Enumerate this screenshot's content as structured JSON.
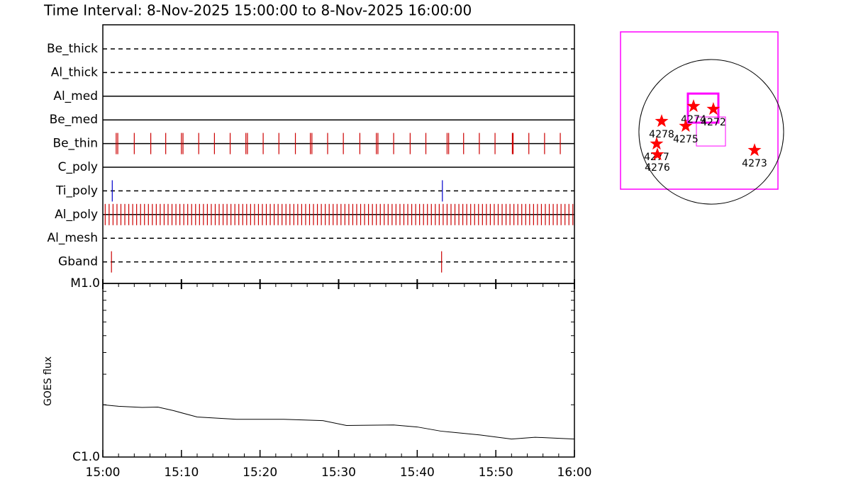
{
  "chart_data": [
    {
      "type": "event",
      "title": "Time Interval:  8-Nov-2025 15:00:00 to  8-Nov-2025 16:00:00",
      "xlim": [
        0,
        60
      ],
      "categories": [
        "Be_thick",
        "Al_thick",
        "Al_med",
        "Be_med",
        "Be_thin",
        "C_poly",
        "Ti_poly",
        "Al_poly",
        "Al_mesh",
        "Gband"
      ],
      "line_styles": [
        "dashed",
        "dashed",
        "solid",
        "solid",
        "solid",
        "solid",
        "dashed",
        "solid",
        "dashed",
        "dashed"
      ],
      "event_colors": [
        "#cc0000",
        "#cc0000",
        "#cc0000",
        "#cc0000",
        "#cc0000",
        "#cc0000",
        "#0000cc",
        "#cc0000",
        "#cc0000",
        "#cc0000"
      ],
      "events": [
        [],
        [],
        [],
        [],
        [
          1.7,
          1.9,
          4.0,
          6.1,
          8.0,
          10.0,
          10.2,
          12.2,
          14.2,
          16.2,
          18.2,
          18.4,
          20.4,
          22.4,
          24.5,
          26.4,
          26.6,
          28.6,
          30.6,
          32.7,
          34.8,
          35.0,
          37.0,
          39.1,
          41.1,
          43.8,
          44.0,
          45.9,
          47.9,
          49.9,
          52.1,
          52.2,
          54.2,
          56.2,
          58.2
        ],
        [],
        [
          1.2,
          43.2
        ],
        [
          0.3,
          0.8,
          1.3,
          1.8,
          2.3,
          2.8,
          3.3,
          3.8,
          4.3,
          4.8,
          5.3,
          5.8,
          6.3,
          6.8,
          7.3,
          7.8,
          8.3,
          8.8,
          9.3,
          9.8,
          10.3,
          10.8,
          11.3,
          11.8,
          12.3,
          12.8,
          13.3,
          13.8,
          14.3,
          14.8,
          15.3,
          15.8,
          16.3,
          16.8,
          17.3,
          17.8,
          18.3,
          18.8,
          19.3,
          19.8,
          20.3,
          20.8,
          21.3,
          21.8,
          22.3,
          22.8,
          23.3,
          23.8,
          24.3,
          24.8,
          25.3,
          25.8,
          26.3,
          26.8,
          27.3,
          27.8,
          28.3,
          28.8,
          29.3,
          29.8,
          30.3,
          30.8,
          31.3,
          31.8,
          32.3,
          32.8,
          33.3,
          33.8,
          34.3,
          34.8,
          35.3,
          35.8,
          36.3,
          36.8,
          37.3,
          37.8,
          38.3,
          38.8,
          39.3,
          39.8,
          40.3,
          40.8,
          41.3,
          41.8,
          42.3,
          42.8,
          43.3,
          43.8,
          44.3,
          44.8,
          45.3,
          45.8,
          46.3,
          46.8,
          47.3,
          47.8,
          48.3,
          48.8,
          49.3,
          49.8,
          50.3,
          50.8,
          51.3,
          51.8,
          52.3,
          52.8,
          53.3,
          53.8,
          54.3,
          54.8,
          55.3,
          55.8,
          56.3,
          56.8,
          57.3,
          57.8,
          58.3,
          58.8,
          59.3,
          59.8
        ],
        [],
        [
          1.1,
          43.1
        ]
      ]
    },
    {
      "type": "line",
      "ylabel": "GOES flux",
      "log_y": true,
      "color": "#000000",
      "xlim": [
        0,
        60
      ],
      "xticks": [
        {
          "value": 0,
          "label": "15:00"
        },
        {
          "value": 10,
          "label": "15:10"
        },
        {
          "value": 20,
          "label": "15:20"
        },
        {
          "value": 30,
          "label": "15:30"
        },
        {
          "value": 40,
          "label": "15:40"
        },
        {
          "value": 50,
          "label": "15:50"
        },
        {
          "value": 60,
          "label": "16:00"
        }
      ],
      "xminor_ticks": [
        2,
        4,
        6,
        8,
        12,
        14,
        16,
        18,
        22,
        24,
        26,
        28,
        32,
        34,
        36,
        38,
        42,
        44,
        46,
        48,
        52,
        54,
        56,
        58
      ],
      "ylim": [
        1e-06,
        1e-05
      ],
      "yticks": [
        {
          "value": 1e-06,
          "label": "C1.0"
        },
        {
          "value": 1e-05,
          "label": "M1.0"
        }
      ],
      "yminor_ticks": [
        2e-06,
        3e-06,
        4e-06,
        5e-06,
        6e-06,
        7e-06,
        8e-06,
        9e-06
      ],
      "x": [
        0,
        2,
        5,
        7,
        9,
        12,
        17,
        23,
        28,
        31,
        37,
        40,
        43,
        48,
        52,
        55,
        60
      ],
      "values": [
        2e-06,
        1.96e-06,
        1.93e-06,
        1.94e-06,
        1.85e-06,
        1.7e-06,
        1.65e-06,
        1.65e-06,
        1.62e-06,
        1.52e-06,
        1.53e-06,
        1.49e-06,
        1.41e-06,
        1.34e-06,
        1.27e-06,
        1.3e-06,
        1.27e-06
      ]
    },
    {
      "type": "map",
      "xlim": [
        -1214,
        892
      ],
      "ylim": [
        -768,
        1338
      ],
      "box_color": "#ff00ff",
      "disk_radius": 968,
      "boxes": [
        {
          "xlim": [
            -313,
            95
          ],
          "ylim": [
            123,
            512
          ],
          "stroke_width": 3
        },
        {
          "xlim": [
            -199,
            190
          ],
          "ylim": [
            -190,
            199
          ],
          "stroke_width": 1
        }
      ],
      "star_color": "#ff0000",
      "labels": [
        "4278",
        "4274",
        "4272",
        "4275",
        "4277",
        "4276",
        "4273"
      ],
      "x": [
        -664,
        -237,
        28,
        -342,
        -731,
        -721,
        579
      ],
      "y": [
        142,
        342,
        304,
        76,
        -161,
        -304,
        -247
      ]
    }
  ]
}
